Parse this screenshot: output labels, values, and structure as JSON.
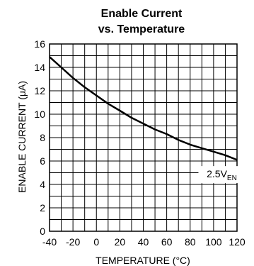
{
  "chart_data": {
    "type": "line",
    "title": "Enable Current",
    "subtitle": "vs. Temperature",
    "xlabel": "TEMPERATURE (°C)",
    "ylabel": "ENABLE CURRENT (μA)",
    "xlim": [
      -40,
      120
    ],
    "ylim": [
      0,
      16
    ],
    "x_ticks": [
      -40,
      -20,
      0,
      20,
      40,
      60,
      80,
      100,
      120
    ],
    "y_ticks": [
      0,
      2,
      4,
      6,
      8,
      10,
      12,
      14,
      16
    ],
    "grid": true,
    "series": [
      {
        "x": [
          -40,
          -30,
          -20,
          -10,
          0,
          10,
          20,
          30,
          40,
          50,
          60,
          70,
          80,
          90,
          100,
          110,
          120
        ],
        "y": [
          14.9,
          14.0,
          13.1,
          12.3,
          11.6,
          10.9,
          10.3,
          9.7,
          9.2,
          8.7,
          8.3,
          7.8,
          7.4,
          7.1,
          6.8,
          6.5,
          6.1
        ]
      }
    ],
    "annotation": {
      "label_main": "2.5V",
      "label_sub": "EN",
      "x": 107,
      "y": 4.9
    }
  }
}
